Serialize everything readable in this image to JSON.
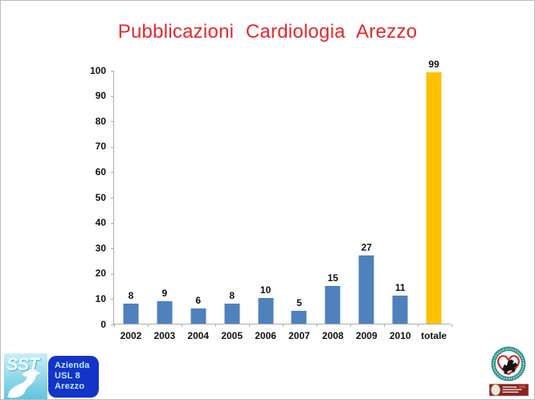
{
  "slide": {
    "title": "Pubblicazioni Cardiologia Arezzo"
  },
  "chart_data": {
    "type": "bar",
    "title": "Pubblicazioni Cardiologia Arezzo",
    "categories": [
      "2002",
      "2003",
      "2004",
      "2005",
      "2006",
      "2007",
      "2008",
      "2009",
      "2010",
      "totale"
    ],
    "values": [
      8,
      9,
      6,
      8,
      10,
      5,
      15,
      27,
      11,
      99
    ],
    "bar_colors": [
      "#4f81bd",
      "#4f81bd",
      "#4f81bd",
      "#4f81bd",
      "#4f81bd",
      "#4f81bd",
      "#4f81bd",
      "#4f81bd",
      "#4f81bd",
      "#ffc000"
    ],
    "xlabel": "",
    "ylabel": "",
    "ylim": [
      0,
      100
    ],
    "yticks": [
      0,
      10,
      20,
      30,
      40,
      50,
      60,
      70,
      80,
      90,
      100
    ],
    "grid": false,
    "legend": false,
    "data_labels_shown": true
  },
  "footer": {
    "sst_logo_text": "SST",
    "usl_badge_lines": [
      "Azienda",
      "USL 8",
      "Arezzo"
    ]
  },
  "colors": {
    "title_red": "#e3292d",
    "bar_blue": "#4f81bd",
    "bar_total_orange": "#ffc000",
    "axis_gray": "#adadad",
    "usl_badge_blue": "#1433c8",
    "usl_badge_text": "#bfeaff",
    "sst_square_cyan": "#9adbec",
    "seal_ring_teal": "#37978f",
    "seal_heart_red": "#cc2222",
    "seal_banner_red": "#8e2121"
  }
}
